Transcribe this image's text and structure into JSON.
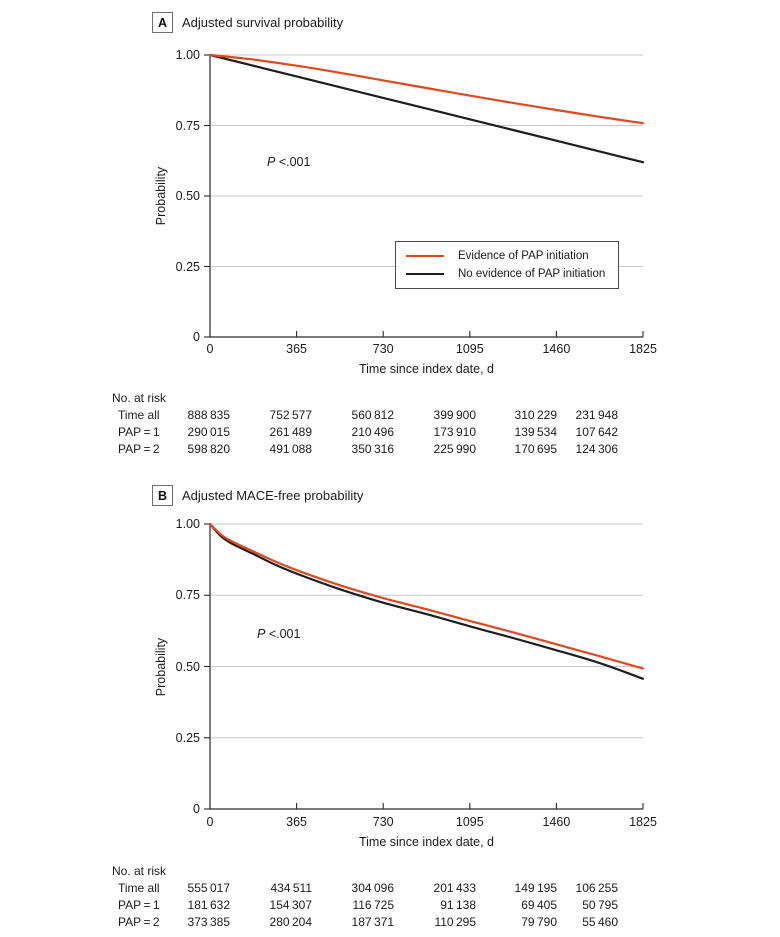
{
  "figure_colors": {
    "pap_line": "#E2481E",
    "no_pap_line": "#1e1e1e",
    "gridline": "#c8c8c8",
    "axis": "#2b2b2b"
  },
  "chart_data": [
    {
      "panel": "A",
      "type": "line",
      "title": "Adjusted survival probability",
      "xlabel": "Time since index date, d",
      "ylabel": "Probability",
      "p_italic": "P",
      "p_rest": " <.001",
      "xlim": [
        0,
        1825
      ],
      "ylim": [
        0,
        1
      ],
      "grid": "horizontal",
      "legend_position": "inside-right",
      "xticks": [
        {
          "label": "0",
          "value": 0
        },
        {
          "label": "365",
          "value": 365
        },
        {
          "label": "730",
          "value": 730
        },
        {
          "label": "1095",
          "value": 1095
        },
        {
          "label": "1460",
          "value": 1460
        },
        {
          "label": "1825",
          "value": 1825
        }
      ],
      "yticks": [
        {
          "label": "1.00",
          "value": 1.0
        },
        {
          "label": "0.75",
          "value": 0.75
        },
        {
          "label": "0.50",
          "value": 0.5
        },
        {
          "label": "0.25",
          "value": 0.25
        },
        {
          "label": "0",
          "value": 0
        }
      ],
      "legend": [
        {
          "label": "Evidence of PAP initiation",
          "color": "#E2481E"
        },
        {
          "label": "No evidence of PAP initiation",
          "color": "#1e1e1e"
        }
      ],
      "series": [
        {
          "name": "Evidence of PAP initiation",
          "color": "#E2481E",
          "x": [
            0,
            182,
            365,
            548,
            730,
            912,
            1095,
            1277,
            1460,
            1642,
            1825
          ],
          "y": [
            1.0,
            0.984,
            0.962,
            0.937,
            0.91,
            0.883,
            0.856,
            0.83,
            0.805,
            0.781,
            0.758
          ]
        },
        {
          "name": "No evidence of PAP initiation",
          "color": "#1e1e1e",
          "x": [
            0,
            365,
            730,
            1095,
            1460,
            1825
          ],
          "y": [
            1.0,
            0.924,
            0.848,
            0.772,
            0.696,
            0.62
          ]
        }
      ],
      "at_risk": {
        "header": "No. at risk",
        "rows": [
          {
            "label": "Time all",
            "values": [
              "888 835",
              "752 577",
              "560 812",
              "399 900",
              "310 229",
              "231 948"
            ]
          },
          {
            "label": "PAP = 1",
            "values": [
              "290 015",
              "261 489",
              "210 496",
              "173 910",
              "139 534",
              "107 642"
            ]
          },
          {
            "label": "PAP = 2",
            "values": [
              "598 820",
              "491 088",
              "350 316",
              "225 990",
              "170 695",
              "124 306"
            ]
          }
        ]
      }
    },
    {
      "panel": "B",
      "type": "line",
      "title": "Adjusted MACE-free probability",
      "xlabel": "Time since index date, d",
      "ylabel": "Probability",
      "p_italic": "P",
      "p_rest": " <.001",
      "xlim": [
        0,
        1825
      ],
      "ylim": [
        0,
        1
      ],
      "grid": "horizontal",
      "xticks": [
        {
          "label": "0",
          "value": 0
        },
        {
          "label": "365",
          "value": 365
        },
        {
          "label": "730",
          "value": 730
        },
        {
          "label": "1095",
          "value": 1095
        },
        {
          "label": "1460",
          "value": 1460
        },
        {
          "label": "1825",
          "value": 1825
        }
      ],
      "yticks": [
        {
          "label": "1.00",
          "value": 1.0
        },
        {
          "label": "0.75",
          "value": 0.75
        },
        {
          "label": "0.50",
          "value": 0.5
        },
        {
          "label": "0.25",
          "value": 0.25
        },
        {
          "label": "0",
          "value": 0
        }
      ],
      "series": [
        {
          "name": "Evidence of PAP initiation",
          "color": "#E2481E",
          "x": [
            0,
            45,
            90,
            180,
            270,
            365,
            548,
            730,
            912,
            1095,
            1277,
            1460,
            1642,
            1825
          ],
          "y": [
            1.0,
            0.964,
            0.94,
            0.905,
            0.87,
            0.838,
            0.785,
            0.74,
            0.701,
            0.66,
            0.62,
            0.578,
            0.536,
            0.493
          ]
        },
        {
          "name": "No evidence of PAP initiation",
          "color": "#1e1e1e",
          "x": [
            0,
            45,
            90,
            180,
            270,
            365,
            548,
            730,
            912,
            1095,
            1277,
            1460,
            1642,
            1825
          ],
          "y": [
            1.0,
            0.958,
            0.932,
            0.896,
            0.859,
            0.826,
            0.771,
            0.724,
            0.684,
            0.641,
            0.6,
            0.557,
            0.512,
            0.457
          ]
        }
      ],
      "at_risk": {
        "header": "No. at risk",
        "rows": [
          {
            "label": "Time all",
            "values": [
              "555 017",
              "434 511",
              "304 096",
              "201 433",
              "149 195",
              "106 255"
            ]
          },
          {
            "label": "PAP = 1",
            "values": [
              "181 632",
              "154 307",
              "116 725",
              "91 138",
              "69 405",
              "50 795"
            ]
          },
          {
            "label": "PAP = 2",
            "values": [
              "373 385",
              "280 204",
              "187 371",
              "110 295",
              "79 790",
              "55 460"
            ]
          }
        ]
      }
    }
  ]
}
